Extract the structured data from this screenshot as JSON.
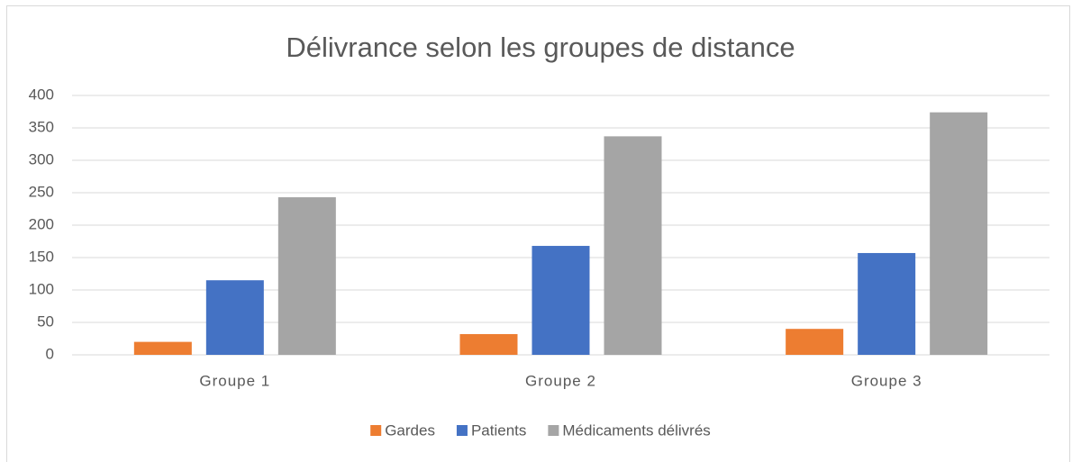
{
  "chart_data": {
    "type": "bar",
    "title": "Délivrance selon les groupes de distance",
    "categories": [
      "Groupe 1",
      "Groupe 2",
      "Groupe 3"
    ],
    "series": [
      {
        "name": "Gardes",
        "color": "#ed7d31",
        "values": [
          20,
          32,
          40
        ]
      },
      {
        "name": "Patients",
        "color": "#4472c4",
        "values": [
          115,
          168,
          157
        ]
      },
      {
        "name": "Médicaments délivrés",
        "color": "#a5a5a5",
        "values": [
          243,
          337,
          374
        ]
      }
    ],
    "ylim": [
      0,
      400
    ],
    "yticks": [
      0,
      50,
      100,
      150,
      200,
      250,
      300,
      350,
      400
    ],
    "grid": true,
    "legend": "bottom"
  }
}
